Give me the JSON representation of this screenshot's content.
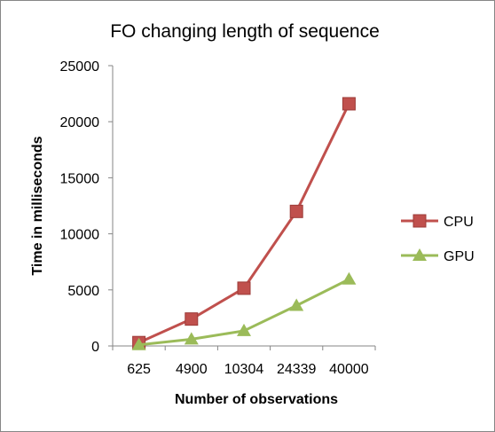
{
  "chart_data": {
    "type": "line",
    "title": "FO changing length of sequence",
    "xlabel": "Number of observations",
    "ylabel": "Time in milliseconds",
    "categories": [
      "625",
      "4900",
      "10304",
      "24339",
      "40000"
    ],
    "ylim": [
      0,
      25000
    ],
    "yticks": [
      0,
      5000,
      10000,
      15000,
      20000,
      25000
    ],
    "grid": false,
    "legend_position": "right",
    "series": [
      {
        "name": "CPU",
        "color": "#C0504D",
        "marker": "square",
        "values": [
          300,
          2400,
          5150,
          12000,
          21600
        ]
      },
      {
        "name": "GPU",
        "color": "#9BBB59",
        "marker": "triangle",
        "values": [
          100,
          600,
          1350,
          3600,
          5950
        ]
      }
    ]
  }
}
